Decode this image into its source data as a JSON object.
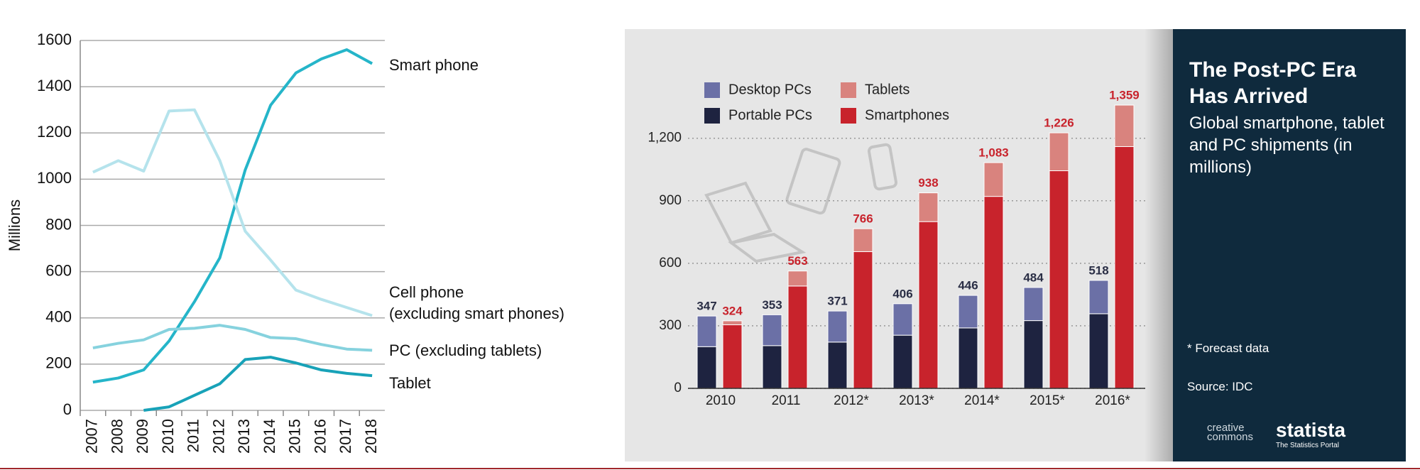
{
  "chart_data": [
    {
      "type": "line",
      "y_label": "Millions",
      "categories": [
        "2007",
        "2008",
        "2009",
        "2010",
        "2011",
        "2012",
        "2013",
        "2014",
        "2015",
        "2016",
        "2017",
        "2018"
      ],
      "ylim": [
        0,
        1600
      ],
      "yticks": [
        0,
        200,
        400,
        600,
        800,
        1000,
        1200,
        1400,
        1600
      ],
      "grid": true,
      "series": [
        {
          "name": "Smart phone",
          "color": "#25b5c9",
          "values": [
            122,
            140,
            175,
            300,
            470,
            660,
            1040,
            1320,
            1460,
            1520,
            1560,
            1500
          ]
        },
        {
          "name": "Cell phone\n(excluding smart phones)",
          "color": "#b5e3ec",
          "values": [
            1030,
            1080,
            1035,
            1295,
            1300,
            1080,
            775,
            650,
            520,
            480,
            445,
            410
          ]
        },
        {
          "name": "PC (excluding tablets)",
          "color": "#86d2de",
          "values": [
            270,
            290,
            305,
            350,
            355,
            368,
            350,
            315,
            310,
            285,
            265,
            260
          ]
        },
        {
          "name": "Tablet",
          "color": "#18a2b8",
          "values": [
            null,
            null,
            0,
            15,
            65,
            115,
            220,
            230,
            205,
            175,
            160,
            150
          ]
        }
      ]
    },
    {
      "type": "stacked_bar",
      "title": "The Post-PC Era Has Arrived",
      "subtitle": "Global smartphone, tablet and PC shipments (in millions)",
      "notes": [
        "* Forecast data",
        "Source: IDC"
      ],
      "credits": [
        "creative\ncommons",
        "statista",
        "The Statistics Portal"
      ],
      "categories": [
        "2010",
        "2011",
        "2012*",
        "2013*",
        "2014*",
        "2015*",
        "2016*"
      ],
      "ylim": [
        0,
        1400
      ],
      "yticks": [
        0,
        300,
        600,
        900,
        {
          "value": 1200,
          "label": "1,200"
        }
      ],
      "grid": true,
      "series": [
        {
          "name": "Portable PCs",
          "color": "#1e2340",
          "stack": "pc",
          "values": [
            200,
            205,
            222,
            255,
            290,
            325,
            358
          ]
        },
        {
          "name": "Desktop PCs",
          "color": "#6b70a6",
          "stack": "pc",
          "values": [
            147,
            148,
            149,
            151,
            156,
            159,
            160
          ]
        },
        {
          "name": "Smartphones",
          "color": "#c8232c",
          "stack": "mobile",
          "values": [
            305,
            491,
            656,
            800,
            921,
            1044,
            1160
          ]
        },
        {
          "name": "Tablets",
          "color": "#d9837e",
          "stack": "mobile",
          "values": [
            19,
            72,
            110,
            138,
            162,
            182,
            199
          ]
        }
      ],
      "totals": [
        {
          "stack": "pc",
          "color": "#2a2e45",
          "values": [
            347,
            353,
            371,
            406,
            446,
            484,
            518
          ]
        },
        {
          "stack": "mobile",
          "color": "#c8232c",
          "values": [
            324,
            563,
            766,
            938,
            1083,
            1226,
            1359
          ],
          "value_labels": [
            "324",
            "563",
            "766",
            "938",
            "1,083",
            "1,226",
            "1,359"
          ]
        }
      ]
    }
  ]
}
